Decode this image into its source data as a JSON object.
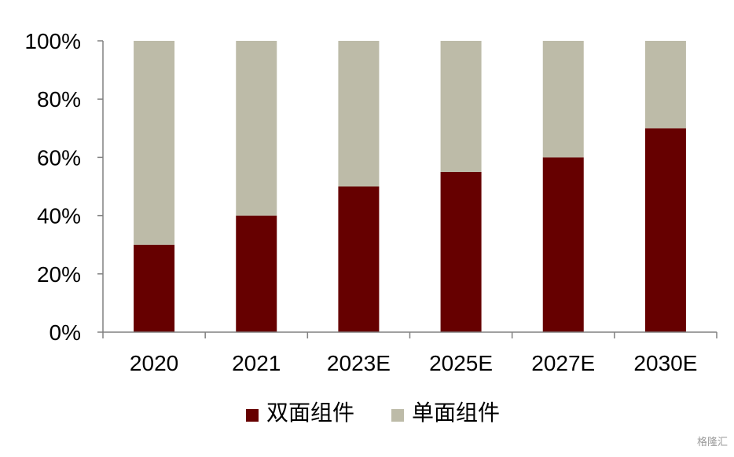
{
  "chart_data": {
    "type": "bar",
    "stacked": true,
    "categories": [
      "2020",
      "2021",
      "2023E",
      "2025E",
      "2027E",
      "2030E"
    ],
    "series": [
      {
        "name": "双面组件",
        "values": [
          30,
          40,
          50,
          55,
          60,
          70
        ],
        "color": "#660000"
      },
      {
        "name": "单面组件",
        "values": [
          70,
          60,
          50,
          45,
          40,
          30
        ],
        "color": "#BDBBA8"
      }
    ],
    "yticks": [
      "0%",
      "20%",
      "40%",
      "60%",
      "80%",
      "100%"
    ],
    "ylim": [
      0,
      100
    ],
    "grid": false,
    "legend": "bottom"
  },
  "watermark": "格隆汇"
}
